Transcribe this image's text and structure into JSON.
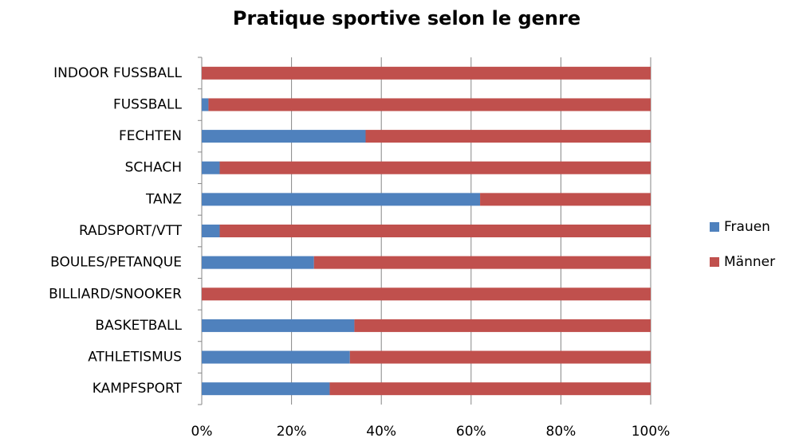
{
  "chart_data": {
    "type": "stacked_bar_horizontal",
    "title": "Pratique sportive selon le genre",
    "categories": [
      "INDOOR FUSSBALL",
      "FUSSBALL",
      "FECHTEN",
      "SCHACH",
      "TANZ",
      "RADSPORT/VTT",
      "BOULES/PETANQUE",
      "BILLIARD/SNOOKER",
      "BASKETBALL",
      "ATHLETISMUS",
      "KAMPFSPORT"
    ],
    "series": [
      {
        "name": "Frauen",
        "color": "#4f81bd",
        "values": [
          0,
          1.5,
          36.5,
          4,
          62,
          4,
          25,
          0,
          34,
          33,
          28.5
        ]
      },
      {
        "name": "Männer",
        "color": "#c0504d",
        "values": [
          100,
          98.5,
          63.5,
          96,
          38,
          96,
          75,
          100,
          66,
          67,
          71.5
        ]
      }
    ],
    "xlim": [
      0,
      100
    ],
    "xticks": [
      {
        "value": 0,
        "label": "0%"
      },
      {
        "value": 20,
        "label": "20%"
      },
      {
        "value": 40,
        "label": "40%"
      },
      {
        "value": 60,
        "label": "60%"
      },
      {
        "value": 80,
        "label": "80%"
      },
      {
        "value": 100,
        "label": "100%"
      }
    ],
    "grid": true,
    "legend": "right"
  }
}
